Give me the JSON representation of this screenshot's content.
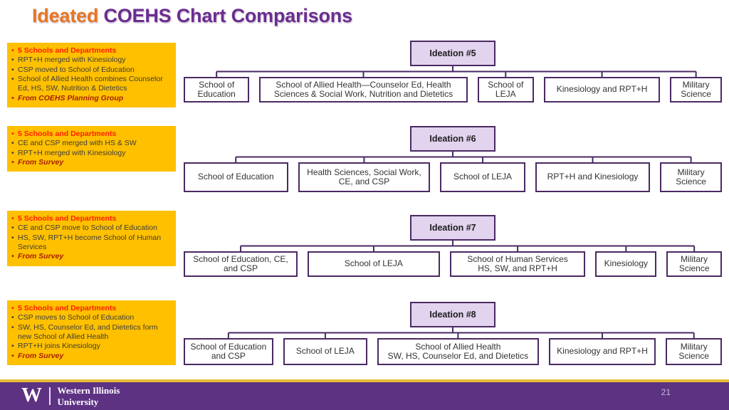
{
  "title": {
    "accent": "Ideated",
    "rest": " COEHS Chart Comparisons"
  },
  "notes": [
    {
      "items": [
        {
          "text": "5 Schools and Departments",
          "style": "head"
        },
        {
          "text": "RPT+H merged with Kinesiology",
          "style": "body"
        },
        {
          "text": "CSP moved to School of Education",
          "style": "body"
        },
        {
          "text": "School of Allied Health combines Counselor Ed, HS, SW, Nutrition & Dietetics",
          "style": "body"
        },
        {
          "text": "From COEHS Planning Group",
          "style": "source"
        }
      ]
    },
    {
      "items": [
        {
          "text": "5 Schools and Departments",
          "style": "head"
        },
        {
          "text": "CE and CSP merged with HS & SW",
          "style": "body"
        },
        {
          "text": "RPT+H merged with Kinesiology",
          "style": "body"
        },
        {
          "text": "From Survey",
          "style": "source"
        }
      ]
    },
    {
      "items": [
        {
          "text": "5 Schools and Departments",
          "style": "head"
        },
        {
          "text": "CE and CSP move to School of Education",
          "style": "body"
        },
        {
          "text": "HS, SW, RPT+H become School of Human Services",
          "style": "body"
        },
        {
          "text": "From Survey",
          "style": "source"
        }
      ]
    },
    {
      "items": [
        {
          "text": "5 Schools and Departments",
          "style": "head"
        },
        {
          "text": "CSP moves to School of Education",
          "style": "body"
        },
        {
          "text": "SW, HS, Counselor Ed, and Dietetics form new School of Allied Health",
          "style": "body"
        },
        {
          "text": "RPT+H joins Kinesiology",
          "style": "body"
        },
        {
          "text": "From Survey",
          "style": "source"
        }
      ]
    }
  ],
  "charts": [
    {
      "root": "Ideation #5",
      "children": [
        {
          "label": "School of Education"
        },
        {
          "label": "School of Allied Health—Counselor Ed, Health Sciences & Social Work, Nutrition and Dietetics"
        },
        {
          "label": "School of LEJA"
        },
        {
          "label": "Kinesiology and RPT+H"
        },
        {
          "label": "Military Science"
        }
      ]
    },
    {
      "root": "Ideation #6",
      "children": [
        {
          "label": "School of Education"
        },
        {
          "label": "Health Sciences, Social Work, CE, and CSP"
        },
        {
          "label": "School of LEJA"
        },
        {
          "label": "RPT+H and Kinesiology"
        },
        {
          "label": "Military Science"
        }
      ]
    },
    {
      "root": "Ideation #7",
      "children": [
        {
          "label": "School of Education, CE, and CSP"
        },
        {
          "label": "School of LEJA"
        },
        {
          "label": "School of Human Services\nHS, SW, and RPT+H"
        },
        {
          "label": "Kinesiology"
        },
        {
          "label": "Military Science"
        }
      ]
    },
    {
      "root": "Ideation #8",
      "children": [
        {
          "label": "School of Education and CSP"
        },
        {
          "label": "School of LEJA"
        },
        {
          "label": "School of Allied Health\nSW, HS, Counselor Ed, and Dietetics"
        },
        {
          "label": "Kinesiology and RPT+H"
        },
        {
          "label": "Military Science"
        }
      ]
    }
  ],
  "footer": {
    "logo_letter": "W",
    "org_line1": "Western Illinois",
    "org_line2": "University",
    "page_number": "21"
  },
  "colors": {
    "title_accent": "#E87722",
    "title_main": "#6B2D90",
    "notes_bg": "#FFC000",
    "note_head": "#FF1F00",
    "note_source": "#A62100",
    "box_border": "#4A2A63",
    "root_fill": "#E2D3EE",
    "connector": "#4A2A63",
    "footer_bg": "#5D3283",
    "gold_line": "#E5BE37",
    "page_number_color": "#CBB8DD"
  }
}
